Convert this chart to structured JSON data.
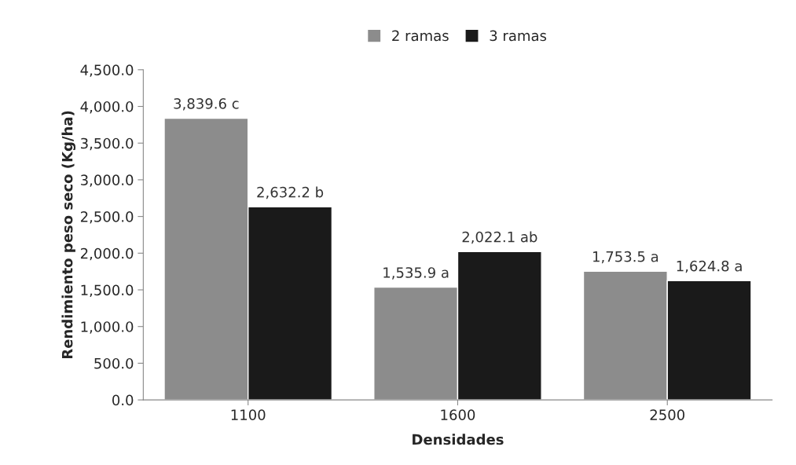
{
  "chart_data": {
    "type": "bar",
    "xlabel": "Densidades",
    "ylabel": "Rendimiento peso seco (Kg/ha)",
    "categories": [
      "1100",
      "1600",
      "2500"
    ],
    "series": [
      {
        "name": "2 ramas",
        "color": "#8c8c8c",
        "values": [
          3839.6,
          1535.9,
          1753.5
        ],
        "value_labels": [
          "3,839.6 c",
          "1,535.9 a",
          "1,753.5 a"
        ]
      },
      {
        "name": "3 ramas",
        "color": "#1a1a1a",
        "values": [
          2632.2,
          2022.1,
          1624.8
        ],
        "value_labels": [
          "2,632.2 b",
          "2,022.1 ab",
          "1,624.8 a"
        ]
      }
    ],
    "ylim": [
      0,
      4500
    ],
    "yticks": [
      {
        "value": 0,
        "label": "0.0"
      },
      {
        "value": 500,
        "label": "500.0"
      },
      {
        "value": 1000,
        "label": "1,000.0"
      },
      {
        "value": 1500,
        "label": "1,500.0"
      },
      {
        "value": 2000,
        "label": "2,000.0"
      },
      {
        "value": 2500,
        "label": "2,500.0"
      },
      {
        "value": 3000,
        "label": "3,000.0"
      },
      {
        "value": 3500,
        "label": "3,500.0"
      },
      {
        "value": 4000,
        "label": "4,000.0"
      },
      {
        "value": 4500,
        "label": "4,500.0"
      }
    ],
    "legend": "top"
  }
}
